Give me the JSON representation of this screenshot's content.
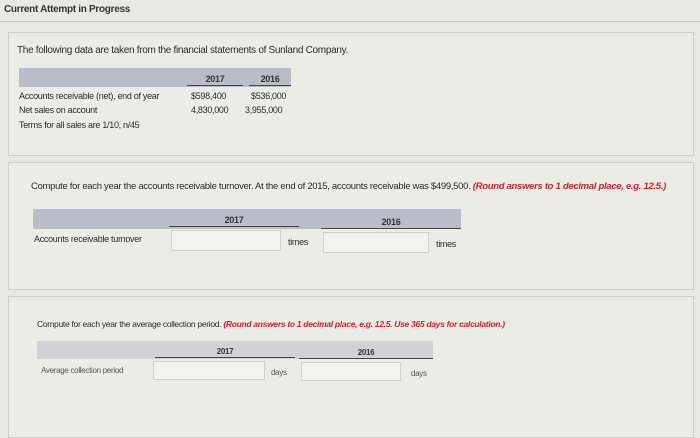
{
  "header": {
    "title": "Current Attempt in Progress"
  },
  "intro": {
    "text": "The following data are taken from the financial statements of Sunland Company."
  },
  "data_table": {
    "columns": [
      "2017",
      "2016"
    ],
    "rows": [
      {
        "label": "Accounts receivable (net), end of year",
        "values": [
          "$598,400",
          "$536,000"
        ]
      },
      {
        "label": "Net sales on account",
        "values": [
          "4,830,000",
          "3,955,000"
        ]
      }
    ],
    "note": "Terms for all sales are 1/10, n/45"
  },
  "q1": {
    "instruction": "Compute for each year the accounts receivable turnover. At the end of 2015, accounts receivable was $499,500.",
    "hint": "(Round answers to 1 decimal place, e.g. 12.5.)",
    "columns": [
      "2017",
      "2016"
    ],
    "row_label": "Accounts receivable turnover",
    "unit": "times",
    "values": [
      "",
      ""
    ]
  },
  "q2": {
    "instruction": "Compute for each year the average collection period.",
    "hint": "(Round answers to 1 decimal place, e.g. 12.5. Use 365 days for calculation.)",
    "columns": [
      "2017",
      "2016"
    ],
    "row_label": "Average collection period",
    "unit": "days",
    "values": [
      "",
      ""
    ]
  }
}
